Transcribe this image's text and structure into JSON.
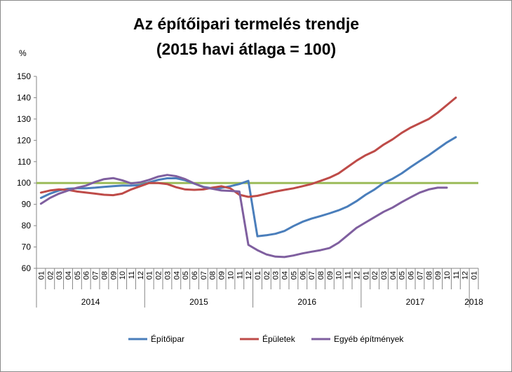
{
  "chart_data": {
    "type": "line",
    "title": "Az építőipari termelés trendje",
    "subtitle": "(2015 havi átlaga = 100)",
    "ylabel": "%",
    "ylim": [
      60,
      150
    ],
    "yticks": [
      60,
      70,
      80,
      90,
      100,
      110,
      120,
      130,
      140,
      150
    ],
    "month_labels": [
      "01",
      "02",
      "03",
      "04",
      "05",
      "06",
      "07",
      "08",
      "09",
      "10",
      "11",
      "12",
      "01",
      "02",
      "03",
      "04",
      "05",
      "06",
      "07",
      "08",
      "09",
      "10",
      "11",
      "12",
      "01",
      "02",
      "03",
      "04",
      "05",
      "06",
      "07",
      "08",
      "09",
      "10",
      "11",
      "12",
      "01",
      "02",
      "03",
      "04",
      "05",
      "06",
      "07",
      "08",
      "09",
      "10",
      "11",
      "12",
      "01"
    ],
    "years": [
      "2014",
      "2015",
      "2016",
      "2017",
      "2018"
    ],
    "reference_line": 100,
    "reference_color": "#9bbb59",
    "legend_position": "bottom",
    "series": [
      {
        "name": "Építőipar",
        "color": "#4a7ebb",
        "values": [
          93.0,
          95.0,
          96.5,
          97.3,
          97.5,
          97.5,
          97.8,
          98.2,
          98.5,
          98.8,
          98.8,
          99.0,
          100.3,
          101.5,
          102.2,
          102.2,
          101.3,
          99.7,
          98.2,
          97.5,
          97.7,
          98.5,
          99.5,
          101.0,
          75.0,
          75.5,
          76.2,
          77.5,
          79.8,
          81.8,
          83.3,
          84.5,
          85.8,
          87.2,
          89.0,
          91.5,
          94.5,
          97.0,
          100.0,
          102.0,
          104.5,
          107.5,
          110.3,
          113.0,
          116.0,
          119.0,
          121.5,
          null,
          null
        ]
      },
      {
        "name": "Épületek",
        "color": "#be4b48",
        "values": [
          95.5,
          96.5,
          97.0,
          96.8,
          96.0,
          95.5,
          95.0,
          94.5,
          94.3,
          95.0,
          97.0,
          98.5,
          100.0,
          100.0,
          99.5,
          98.0,
          97.0,
          96.8,
          97.0,
          97.8,
          98.5,
          97.5,
          94.5,
          93.5,
          94.0,
          95.0,
          96.0,
          96.8,
          97.5,
          98.5,
          99.5,
          101.0,
          102.5,
          104.5,
          107.5,
          110.5,
          113.0,
          115.0,
          118.0,
          120.5,
          123.5,
          126.0,
          128.0,
          130.0,
          133.0,
          136.5,
          140.0,
          null,
          null
        ]
      },
      {
        "name": "Egyéb építmények",
        "color": "#7f5f9f",
        "values": [
          90.3,
          93.0,
          95.0,
          96.5,
          97.8,
          98.8,
          100.5,
          101.8,
          102.3,
          101.3,
          99.8,
          100.3,
          101.5,
          103.0,
          103.8,
          103.2,
          101.8,
          99.8,
          98.0,
          97.3,
          96.5,
          96.3,
          96.0,
          71.0,
          68.5,
          66.5,
          65.5,
          65.3,
          66.0,
          67.0,
          67.8,
          68.5,
          69.5,
          72.0,
          75.5,
          79.0,
          81.5,
          84.0,
          86.5,
          88.5,
          91.0,
          93.3,
          95.5,
          97.0,
          97.8,
          97.8,
          null,
          null,
          null
        ]
      }
    ]
  }
}
